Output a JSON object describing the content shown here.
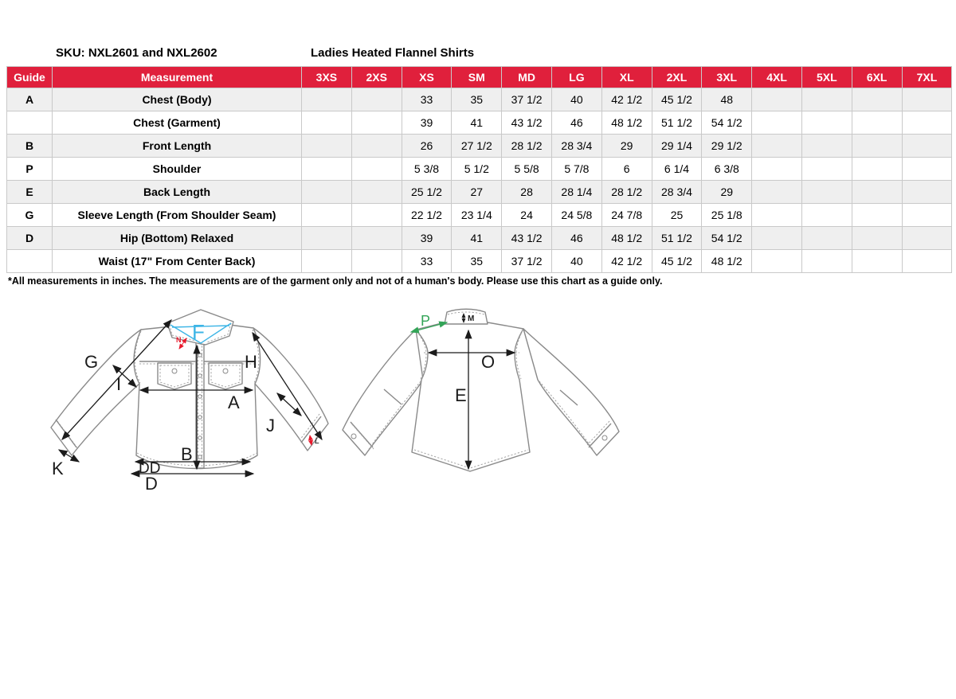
{
  "titles": {
    "sku": "SKU: NXL2601 and NXL2602",
    "product": "Ladies Heated Flannel Shirts"
  },
  "colors": {
    "header_bg": "#e0203c",
    "header_text": "#ffffff",
    "row_alt": "#efefef",
    "drawing_line": "#8a8a8a",
    "label_f_cyan": "#3db5e6",
    "label_p_green": "#33a457",
    "label_n_red": "#e8192c"
  },
  "table": {
    "headers": [
      "Guide",
      "Measurement",
      "3XS",
      "2XS",
      "XS",
      "SM",
      "MD",
      "LG",
      "XL",
      "2XL",
      "3XL",
      "4XL",
      "5XL",
      "6XL",
      "7XL"
    ],
    "rows": [
      {
        "guide": "A",
        "measurement": "Chest (Body)",
        "values": [
          "",
          "",
          "33",
          "35",
          "37 1/2",
          "40",
          "42 1/2",
          "45 1/2",
          "48",
          "",
          "",
          "",
          ""
        ]
      },
      {
        "guide": "",
        "measurement": "Chest (Garment)",
        "values": [
          "",
          "",
          "39",
          "41",
          "43 1/2",
          "46",
          "48 1/2",
          "51 1/2",
          "54 1/2",
          "",
          "",
          "",
          ""
        ]
      },
      {
        "guide": "B",
        "measurement": "Front Length",
        "values": [
          "",
          "",
          "26",
          "27 1/2",
          "28 1/2",
          "28 3/4",
          "29",
          "29 1/4",
          "29 1/2",
          "",
          "",
          "",
          ""
        ]
      },
      {
        "guide": "P",
        "measurement": "Shoulder",
        "values": [
          "",
          "",
          "5 3/8",
          "5 1/2",
          "5 5/8",
          "5 7/8",
          "6",
          "6 1/4",
          "6 3/8",
          "",
          "",
          "",
          ""
        ]
      },
      {
        "guide": "E",
        "measurement": "Back Length",
        "values": [
          "",
          "",
          "25 1/2",
          "27",
          "28",
          "28 1/4",
          "28 1/2",
          "28 3/4",
          "29",
          "",
          "",
          "",
          ""
        ]
      },
      {
        "guide": "G",
        "measurement": "Sleeve Length (From Shoulder Seam)",
        "values": [
          "",
          "",
          "22 1/2",
          "23 1/4",
          "24",
          "24 5/8",
          "24 7/8",
          "25",
          "25 1/8",
          "",
          "",
          "",
          ""
        ]
      },
      {
        "guide": "D",
        "measurement": "Hip (Bottom) Relaxed",
        "values": [
          "",
          "",
          "39",
          "41",
          "43 1/2",
          "46",
          "48 1/2",
          "51 1/2",
          "54 1/2",
          "",
          "",
          "",
          ""
        ]
      },
      {
        "guide": "",
        "measurement": "Waist (17\" From Center Back)",
        "values": [
          "",
          "",
          "33",
          "35",
          "37 1/2",
          "40",
          "42 1/2",
          "45 1/2",
          "48 1/2",
          "",
          "",
          "",
          ""
        ]
      }
    ]
  },
  "footnote": "*All measurements in inches. The measurements are of the garment only and not of a human's body. Please use this chart as a guide only.",
  "diagram": {
    "front_labels": {
      "F": "F",
      "N": "N",
      "G": "G",
      "I": "I",
      "H": "H",
      "A": "A",
      "B": "B",
      "J": "J",
      "K": "K",
      "L": "L",
      "DD": "DD",
      "D": "D"
    },
    "back_labels": {
      "P": "P",
      "M": "M",
      "O": "O",
      "E": "E"
    }
  }
}
